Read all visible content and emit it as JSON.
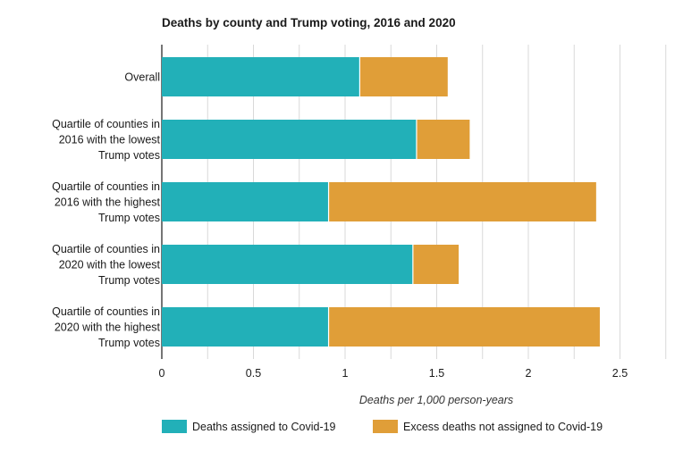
{
  "chart_data": {
    "type": "bar",
    "orientation": "horizontal",
    "stacked": true,
    "title": "Deaths by county and Trump voting, 2016 and 2020",
    "xlabel": "Deaths per 1,000 person-years",
    "ylabel": "",
    "xlim": [
      0,
      2.75
    ],
    "xticks": [
      0,
      0.5,
      1,
      1.5,
      2,
      2.5
    ],
    "xtick_labels": [
      "0",
      "0.5",
      "1",
      "1.5",
      "2",
      "2.5"
    ],
    "grid": true,
    "legend_position": "bottom",
    "categories": [
      [
        "Overall"
      ],
      [
        "Quartile of counties in",
        "2016 with the lowest",
        "Trump votes"
      ],
      [
        "Quartile of counties in",
        "2016 with the highest",
        "Trump votes"
      ],
      [
        "Quartile of counties in",
        "2020 with the lowest",
        "Trump votes"
      ],
      [
        "Quartile of counties in",
        "2020 with the highest",
        "Trump votes"
      ]
    ],
    "series": [
      {
        "name": "Deaths assigned to Covid-19",
        "color": "#22b0b8",
        "values": [
          1.08,
          1.39,
          0.91,
          1.37,
          0.91
        ]
      },
      {
        "name": "Excess deaths not assigned to Covid-19",
        "color": "#e09e38",
        "values": [
          0.48,
          0.29,
          1.46,
          0.25,
          1.48
        ]
      }
    ]
  }
}
